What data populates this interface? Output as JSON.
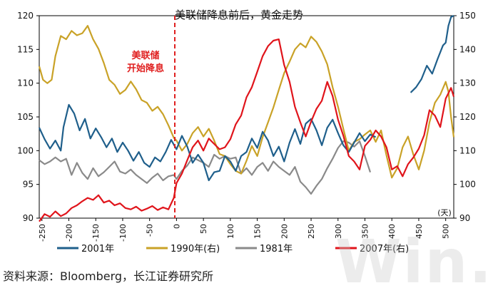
{
  "source": "资料来源：Bloomberg，长江证券研究所",
  "watermark": "Win.d",
  "chart_data": {
    "type": "line",
    "title": "美联储降息前后，黄金走势",
    "annotation": "美联储开始降息",
    "annotation_lines": [
      "美联储",
      "开始降息"
    ],
    "annotation_color": "#e02020",
    "x_unit": "(天)",
    "xlim": [
      -255,
      515
    ],
    "x_ticks": [
      "-250",
      "-200",
      "-150",
      "-100",
      "-50",
      "0",
      "50",
      "100",
      "150",
      "200",
      "250",
      "300",
      "350",
      "400",
      "450",
      "500"
    ],
    "y_left": {
      "ylim": [
        90,
        120
      ],
      "ticks": [
        "90",
        "95",
        "100",
        "105",
        "110",
        "115",
        "120"
      ]
    },
    "y_right": {
      "ylim": [
        90,
        150
      ],
      "ticks": [
        "90",
        "100",
        "110",
        "120",
        "130",
        "140",
        "150"
      ]
    },
    "series": [
      {
        "name": "2001年",
        "color": "#1f5f8b",
        "axis": "left",
        "points": [
          [
            -255,
            103.4
          ],
          [
            -245,
            101.7
          ],
          [
            -235,
            100.3
          ],
          [
            -225,
            101.5
          ],
          [
            -215,
            100.0
          ],
          [
            -210,
            103.5
          ],
          [
            -200,
            106.8
          ],
          [
            -190,
            105.5
          ],
          [
            -180,
            103.0
          ],
          [
            -170,
            104.7
          ],
          [
            -160,
            101.8
          ],
          [
            -150,
            103.3
          ],
          [
            -140,
            102.0
          ],
          [
            -130,
            100.5
          ],
          [
            -120,
            101.8
          ],
          [
            -110,
            99.8
          ],
          [
            -100,
            101.2
          ],
          [
            -90,
            100.0
          ],
          [
            -80,
            98.5
          ],
          [
            -70,
            99.8
          ],
          [
            -60,
            98.2
          ],
          [
            -50,
            97.6
          ],
          [
            -40,
            99.0
          ],
          [
            -30,
            98.4
          ],
          [
            -20,
            99.8
          ],
          [
            -10,
            101.6
          ],
          [
            0,
            100.2
          ],
          [
            10,
            102.2
          ],
          [
            20,
            100.6
          ],
          [
            30,
            98.2
          ],
          [
            40,
            99.4
          ],
          [
            50,
            98.2
          ],
          [
            60,
            95.6
          ],
          [
            70,
            96.8
          ],
          [
            80,
            97.0
          ],
          [
            90,
            99.2
          ],
          [
            100,
            98.4
          ],
          [
            110,
            97.0
          ],
          [
            120,
            99.2
          ],
          [
            130,
            99.8
          ],
          [
            140,
            101.8
          ],
          [
            150,
            100.4
          ],
          [
            160,
            102.8
          ],
          [
            170,
            101.5
          ],
          [
            180,
            99.2
          ],
          [
            190,
            100.6
          ],
          [
            200,
            98.4
          ],
          [
            210,
            101.2
          ],
          [
            220,
            103.2
          ],
          [
            230,
            101.0
          ],
          [
            240,
            104.0
          ],
          [
            250,
            104.7
          ],
          [
            260,
            103.0
          ],
          [
            270,
            100.8
          ],
          [
            280,
            103.4
          ],
          [
            290,
            104.6
          ],
          [
            300,
            102.6
          ],
          [
            310,
            100.8
          ],
          [
            320,
            99.8
          ],
          [
            330,
            101.2
          ],
          [
            340,
            102.6
          ],
          [
            350,
            101.4
          ],
          [
            360,
            102.4
          ],
          [
            370,
            102.0
          ]
        ],
        "points_2": [
          [
            435,
            108.6
          ],
          [
            445,
            109.4
          ],
          [
            455,
            110.6
          ],
          [
            465,
            112.6
          ],
          [
            475,
            111.4
          ],
          [
            485,
            113.6
          ],
          [
            495,
            115.6
          ],
          [
            500,
            116.0
          ],
          [
            505,
            118.5
          ],
          [
            510,
            119.8
          ],
          [
            515,
            120.0
          ]
        ]
      },
      {
        "name": "1990年(右)",
        "color": "#c9a227",
        "axis": "right",
        "points": [
          [
            -255,
            135
          ],
          [
            -248,
            131
          ],
          [
            -240,
            130
          ],
          [
            -232,
            131
          ],
          [
            -225,
            138
          ],
          [
            -215,
            144
          ],
          [
            -205,
            143
          ],
          [
            -195,
            145.5
          ],
          [
            -185,
            144.2
          ],
          [
            -175,
            144.8
          ],
          [
            -165,
            147.0
          ],
          [
            -155,
            143.0
          ],
          [
            -145,
            140.2
          ],
          [
            -135,
            136.0
          ],
          [
            -125,
            131.0
          ],
          [
            -115,
            129.5
          ],
          [
            -105,
            126.8
          ],
          [
            -95,
            128.0
          ],
          [
            -85,
            130.5
          ],
          [
            -75,
            128.2
          ],
          [
            -65,
            125.0
          ],
          [
            -55,
            124.2
          ],
          [
            -45,
            121.8
          ],
          [
            -35,
            123.0
          ],
          [
            -25,
            120.8
          ],
          [
            -15,
            117.5
          ],
          [
            -5,
            113.8
          ],
          [
            0,
            113.0
          ],
          [
            10,
            110.0
          ],
          [
            20,
            112.0
          ],
          [
            30,
            115.2
          ],
          [
            40,
            117.0
          ],
          [
            50,
            114.2
          ],
          [
            60,
            116.5
          ],
          [
            70,
            113.0
          ],
          [
            80,
            109.0
          ],
          [
            90,
            108.4
          ],
          [
            100,
            106.0
          ],
          [
            110,
            104.0
          ],
          [
            120,
            103.2
          ],
          [
            130,
            107.0
          ],
          [
            140,
            111.4
          ],
          [
            150,
            108.4
          ],
          [
            160,
            114.0
          ],
          [
            170,
            118.4
          ],
          [
            180,
            122.8
          ],
          [
            190,
            128.0
          ],
          [
            200,
            133.0
          ],
          [
            210,
            136.4
          ],
          [
            220,
            140.0
          ],
          [
            230,
            141.8
          ],
          [
            240,
            140.6
          ],
          [
            250,
            143.8
          ],
          [
            260,
            142.2
          ],
          [
            270,
            139.4
          ],
          [
            280,
            135.6
          ],
          [
            290,
            128.8
          ],
          [
            300,
            123.0
          ],
          [
            310,
            116.4
          ],
          [
            320,
            110.0
          ],
          [
            330,
            112.6
          ],
          [
            340,
            113.4
          ],
          [
            350,
            114.8
          ],
          [
            360,
            116.0
          ],
          [
            370,
            112.6
          ],
          [
            380,
            116.0
          ],
          [
            390,
            108.6
          ],
          [
            400,
            102.0
          ],
          [
            410,
            104.8
          ],
          [
            420,
            111.0
          ],
          [
            430,
            114.2
          ],
          [
            440,
            108.8
          ],
          [
            450,
            104.4
          ],
          [
            460,
            110.0
          ],
          [
            470,
            118.4
          ],
          [
            480,
            124.2
          ],
          [
            490,
            126.6
          ],
          [
            500,
            130.4
          ],
          [
            505,
            127.5
          ],
          [
            510,
            120.0
          ],
          [
            515,
            114.0
          ]
        ]
      },
      {
        "name": "1981年",
        "color": "#8a8a8a",
        "axis": "left",
        "points": [
          [
            -255,
            98.6
          ],
          [
            -245,
            98.0
          ],
          [
            -235,
            98.4
          ],
          [
            -225,
            99.0
          ],
          [
            -215,
            98.4
          ],
          [
            -205,
            98.8
          ],
          [
            -195,
            96.4
          ],
          [
            -185,
            98.2
          ],
          [
            -175,
            96.7
          ],
          [
            -165,
            95.8
          ],
          [
            -155,
            97.4
          ],
          [
            -145,
            96.2
          ],
          [
            -135,
            96.8
          ],
          [
            -125,
            97.6
          ],
          [
            -115,
            98.4
          ],
          [
            -105,
            96.9
          ],
          [
            -95,
            96.6
          ],
          [
            -85,
            97.2
          ],
          [
            -75,
            96.4
          ],
          [
            -65,
            95.8
          ],
          [
            -55,
            95.2
          ],
          [
            -45,
            96.0
          ],
          [
            -35,
            96.6
          ],
          [
            -25,
            95.6
          ],
          [
            -15,
            96.2
          ],
          [
            -5,
            96.4
          ],
          [
            0,
            95.8
          ],
          [
            10,
            97.0
          ],
          [
            20,
            97.8
          ],
          [
            30,
            99.0
          ],
          [
            40,
            98.6
          ],
          [
            50,
            98.2
          ],
          [
            60,
            97.6
          ],
          [
            70,
            99.4
          ],
          [
            80,
            98.8
          ],
          [
            90,
            99.2
          ],
          [
            100,
            98.8
          ],
          [
            110,
            99.0
          ],
          [
            120,
            96.6
          ],
          [
            130,
            97.4
          ],
          [
            140,
            96.4
          ],
          [
            150,
            97.6
          ],
          [
            160,
            98.2
          ],
          [
            170,
            97.0
          ],
          [
            180,
            98.4
          ],
          [
            190,
            97.6
          ],
          [
            200,
            97.0
          ],
          [
            210,
            96.4
          ],
          [
            220,
            97.6
          ],
          [
            230,
            95.4
          ],
          [
            240,
            94.6
          ],
          [
            250,
            93.6
          ],
          [
            260,
            94.8
          ],
          [
            270,
            95.8
          ],
          [
            280,
            97.4
          ],
          [
            290,
            98.8
          ],
          [
            300,
            100.4
          ],
          [
            310,
            101.4
          ],
          [
            320,
            101.2
          ],
          [
            330,
            100.6
          ],
          [
            340,
            101.4
          ],
          [
            350,
            99.2
          ],
          [
            360,
            96.8
          ]
        ]
      },
      {
        "name": "2007年(右)",
        "color": "#e0141b",
        "axis": "right",
        "points": [
          [
            -255,
            89
          ],
          [
            -245,
            91.2
          ],
          [
            -235,
            90.4
          ],
          [
            -225,
            92.0
          ],
          [
            -215,
            90.6
          ],
          [
            -205,
            91.4
          ],
          [
            -195,
            93.0
          ],
          [
            -185,
            93.8
          ],
          [
            -175,
            95.0
          ],
          [
            -165,
            96.0
          ],
          [
            -155,
            95.4
          ],
          [
            -145,
            96.8
          ],
          [
            -135,
            94.6
          ],
          [
            -125,
            95.2
          ],
          [
            -115,
            93.8
          ],
          [
            -105,
            94.4
          ],
          [
            -95,
            93.0
          ],
          [
            -85,
            92.6
          ],
          [
            -75,
            93.4
          ],
          [
            -65,
            92.2
          ],
          [
            -55,
            92.8
          ],
          [
            -45,
            93.6
          ],
          [
            -35,
            92.4
          ],
          [
            -25,
            93.2
          ],
          [
            -15,
            92.6
          ],
          [
            -5,
            96.0
          ],
          [
            0,
            100.4
          ],
          [
            10,
            103.2
          ],
          [
            20,
            107.2
          ],
          [
            30,
            111.0
          ],
          [
            40,
            113.0
          ],
          [
            50,
            110.0
          ],
          [
            60,
            113.6
          ],
          [
            70,
            112.0
          ],
          [
            80,
            110.4
          ],
          [
            90,
            111.0
          ],
          [
            100,
            113.4
          ],
          [
            110,
            117.8
          ],
          [
            120,
            120.4
          ],
          [
            130,
            125.8
          ],
          [
            140,
            128.8
          ],
          [
            150,
            133.4
          ],
          [
            160,
            138.0
          ],
          [
            170,
            141.0
          ],
          [
            180,
            142.6
          ],
          [
            190,
            143.0
          ],
          [
            200,
            135.4
          ],
          [
            210,
            130.4
          ],
          [
            220,
            123.0
          ],
          [
            230,
            118.4
          ],
          [
            240,
            114.2
          ],
          [
            250,
            118.6
          ],
          [
            260,
            122.4
          ],
          [
            270,
            124.8
          ],
          [
            280,
            130.4
          ],
          [
            290,
            126.2
          ],
          [
            300,
            119.2
          ],
          [
            310,
            114.4
          ],
          [
            320,
            108.4
          ],
          [
            330,
            106.8
          ],
          [
            340,
            104.4
          ],
          [
            350,
            111.4
          ],
          [
            360,
            113.2
          ],
          [
            370,
            116.0
          ],
          [
            380,
            114.2
          ],
          [
            390,
            111.0
          ],
          [
            400,
            104.4
          ],
          [
            410,
            105.4
          ],
          [
            420,
            102.4
          ],
          [
            430,
            106.0
          ],
          [
            440,
            108.0
          ],
          [
            450,
            110.6
          ],
          [
            460,
            114.6
          ],
          [
            470,
            122.0
          ],
          [
            480,
            120.4
          ],
          [
            490,
            117.0
          ],
          [
            500,
            125.4
          ],
          [
            510,
            128.6
          ],
          [
            515,
            126.0
          ]
        ]
      }
    ],
    "grid": false,
    "legend_placement": "bottom"
  }
}
